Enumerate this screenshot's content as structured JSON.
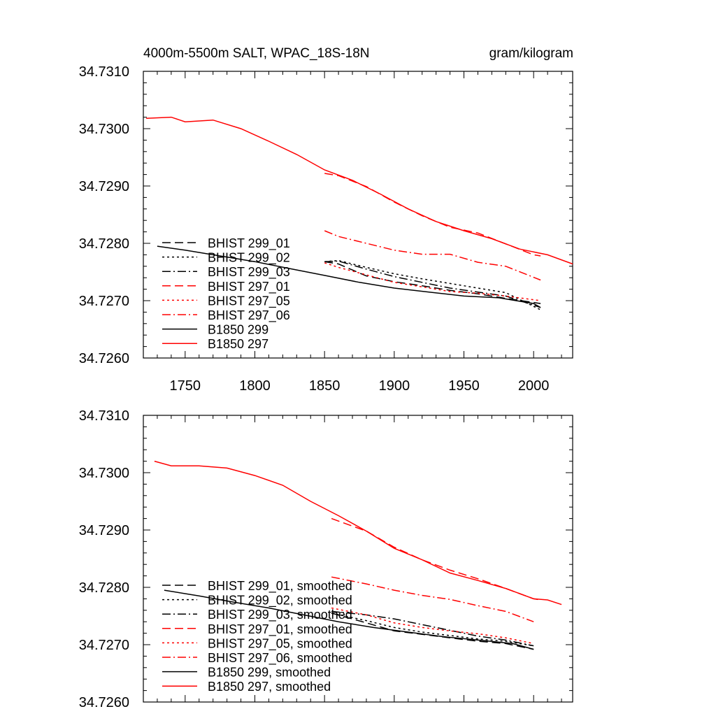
{
  "chart_data": [
    {
      "type": "line",
      "title": "4000m-5500m SALT, WPAC_18S-18N",
      "units": "gram/kilogram",
      "xlim": [
        1720,
        2028
      ],
      "ylim": [
        34.726,
        34.731
      ],
      "x_ticks": [
        1750,
        1800,
        1850,
        1900,
        1950,
        2000
      ],
      "x_tick_labels": [
        "1750",
        "1800",
        "1850",
        "1900",
        "1950",
        "2000"
      ],
      "y_ticks": [
        34.726,
        34.727,
        34.728,
        34.729,
        34.73,
        34.731
      ],
      "y_tick_labels": [
        "34.7260",
        "34.7270",
        "34.7280",
        "34.7290",
        "34.7300",
        "34.7310"
      ],
      "grid": false,
      "legend_position": "bottom-left",
      "series": [
        {
          "name": "BHIST 299_01",
          "color": "#000000",
          "dash": "dash",
          "x": [
            1850,
            1860,
            1880,
            1900,
            1920,
            1940,
            1960,
            1980,
            2005
          ],
          "y": [
            34.72768,
            34.72764,
            34.72743,
            34.72733,
            34.72726,
            34.72718,
            34.72712,
            34.72704,
            34.72695
          ]
        },
        {
          "name": "BHIST 299_02",
          "color": "#000000",
          "dash": "dot",
          "x": [
            1850,
            1860,
            1880,
            1900,
            1920,
            1940,
            1960,
            1980,
            2005
          ],
          "y": [
            34.72768,
            34.7277,
            34.72758,
            34.72747,
            34.72738,
            34.7273,
            34.72722,
            34.72714,
            34.72684
          ]
        },
        {
          "name": "BHIST 299_03",
          "color": "#000000",
          "dash": "dashdot",
          "x": [
            1850,
            1860,
            1880,
            1900,
            1920,
            1940,
            1960,
            1980,
            2005
          ],
          "y": [
            34.72768,
            34.72769,
            34.72755,
            34.72742,
            34.72732,
            34.72722,
            34.72715,
            34.72708,
            34.72688
          ]
        },
        {
          "name": "BHIST 297_01",
          "color": "#ff0000",
          "dash": "dash",
          "x": [
            1850,
            1860,
            1880,
            1900,
            1920,
            1940,
            1960,
            1980,
            2000,
            2005
          ],
          "y": [
            34.72922,
            34.72918,
            34.72899,
            34.72872,
            34.72848,
            34.72828,
            34.72818,
            34.72799,
            34.7278,
            34.72778
          ]
        },
        {
          "name": "BHIST 297_05",
          "color": "#ff0000",
          "dash": "dot",
          "x": [
            1850,
            1860,
            1880,
            1900,
            1920,
            1940,
            1960,
            1980,
            2005
          ],
          "y": [
            34.72766,
            34.72758,
            34.72745,
            34.72732,
            34.72724,
            34.72716,
            34.72713,
            34.72708,
            34.727
          ]
        },
        {
          "name": "BHIST 297_06",
          "color": "#ff0000",
          "dash": "dashdot",
          "x": [
            1850,
            1860,
            1880,
            1900,
            1920,
            1940,
            1960,
            1980,
            2005
          ],
          "y": [
            34.72822,
            34.72812,
            34.728,
            34.72788,
            34.72781,
            34.72781,
            34.72767,
            34.7276,
            34.72736
          ]
        },
        {
          "name": "B1850 299",
          "color": "#000000",
          "dash": "solid",
          "x": [
            1730,
            1750,
            1775,
            1800,
            1825,
            1850,
            1875,
            1900,
            1925,
            1950,
            1975,
            2000,
            2005
          ],
          "y": [
            34.72795,
            34.72788,
            34.72778,
            34.72768,
            34.72756,
            34.72744,
            34.72732,
            34.72722,
            34.72715,
            34.72708,
            34.72705,
            34.72695,
            34.72688
          ]
        },
        {
          "name": "B1850 297",
          "color": "#ff0000",
          "dash": "solid",
          "x": [
            1722,
            1740,
            1750,
            1770,
            1790,
            1810,
            1830,
            1850,
            1870,
            1890,
            1910,
            1930,
            1950,
            1970,
            1990,
            2010,
            2028
          ],
          "y": [
            34.73018,
            34.7302,
            34.73012,
            34.73015,
            34.73,
            34.72978,
            34.72955,
            34.72928,
            34.7291,
            34.72886,
            34.7286,
            34.72838,
            34.72822,
            34.72808,
            34.7279,
            34.7278,
            34.72764
          ]
        }
      ]
    },
    {
      "type": "line",
      "xlim": [
        1720,
        2028
      ],
      "ylim": [
        34.726,
        34.731
      ],
      "x_ticks": [
        1750,
        1800,
        1850,
        1900,
        1950,
        2000
      ],
      "y_ticks": [
        34.726,
        34.727,
        34.728,
        34.729,
        34.73,
        34.731
      ],
      "y_tick_labels": [
        "34.7260",
        "34.7270",
        "34.7280",
        "34.7290",
        "34.7300",
        "34.7310"
      ],
      "grid": false,
      "legend_position": "bottom-left",
      "series": [
        {
          "name": "BHIST 299_01, smoothed",
          "color": "#000000",
          "dash": "dash",
          "x": [
            1855,
            1880,
            1900,
            1920,
            1940,
            1960,
            1980,
            2000
          ],
          "y": [
            34.72755,
            34.72738,
            34.72724,
            34.72718,
            34.72712,
            34.72706,
            34.72702,
            34.72692
          ]
        },
        {
          "name": "BHIST 299_02, smoothed",
          "color": "#000000",
          "dash": "dot",
          "x": [
            1855,
            1880,
            1900,
            1920,
            1940,
            1960,
            1980,
            2000
          ],
          "y": [
            34.72755,
            34.72742,
            34.7273,
            34.72722,
            34.72716,
            34.7271,
            34.72706,
            34.72698
          ]
        },
        {
          "name": "BHIST 299_03, smoothed",
          "color": "#000000",
          "dash": "dashdot",
          "x": [
            1855,
            1880,
            1900,
            1920,
            1940,
            1960,
            1980,
            2000
          ],
          "y": [
            34.72758,
            34.72752,
            34.72745,
            34.72735,
            34.72725,
            34.72715,
            34.72708,
            34.72698
          ]
        },
        {
          "name": "BHIST 297_01, smoothed",
          "color": "#ff0000",
          "dash": "dash",
          "x": [
            1855,
            1880,
            1900,
            1920,
            1940,
            1960,
            1980,
            2000,
            2005
          ],
          "y": [
            34.7292,
            34.72898,
            34.7287,
            34.72848,
            34.7283,
            34.72815,
            34.72798,
            34.7278,
            34.72778
          ]
        },
        {
          "name": "BHIST 297_05, smoothed",
          "color": "#ff0000",
          "dash": "dot",
          "x": [
            1855,
            1880,
            1900,
            1920,
            1940,
            1960,
            1980,
            2000
          ],
          "y": [
            34.72764,
            34.72752,
            34.72738,
            34.7273,
            34.72724,
            34.72719,
            34.72712,
            34.72702
          ]
        },
        {
          "name": "BHIST 297_06, smoothed",
          "color": "#ff0000",
          "dash": "dashdot",
          "x": [
            1855,
            1880,
            1900,
            1920,
            1940,
            1960,
            1980,
            2000
          ],
          "y": [
            34.72818,
            34.72806,
            34.72795,
            34.72786,
            34.72779,
            34.72768,
            34.72758,
            34.7274
          ]
        },
        {
          "name": "B1850 299, smoothed",
          "color": "#000000",
          "dash": "solid",
          "x": [
            1735,
            1760,
            1785,
            1810,
            1835,
            1860,
            1885,
            1910,
            1935,
            1960,
            1985,
            2000
          ],
          "y": [
            34.72795,
            34.72785,
            34.72774,
            34.72764,
            34.72752,
            34.7274,
            34.7273,
            34.72722,
            34.72714,
            34.72708,
            34.72702,
            34.72692
          ]
        },
        {
          "name": "B1850 297, smoothed",
          "color": "#ff0000",
          "dash": "solid",
          "x": [
            1728,
            1740,
            1760,
            1780,
            1800,
            1820,
            1840,
            1860,
            1880,
            1900,
            1920,
            1940,
            1960,
            1980,
            2000,
            2010,
            2020
          ],
          "y": [
            34.7302,
            34.73012,
            34.73012,
            34.73008,
            34.72995,
            34.72978,
            34.7295,
            34.72925,
            34.72898,
            34.72868,
            34.72848,
            34.72825,
            34.72812,
            34.72798,
            34.7278,
            34.72778,
            34.7277
          ]
        }
      ]
    }
  ]
}
